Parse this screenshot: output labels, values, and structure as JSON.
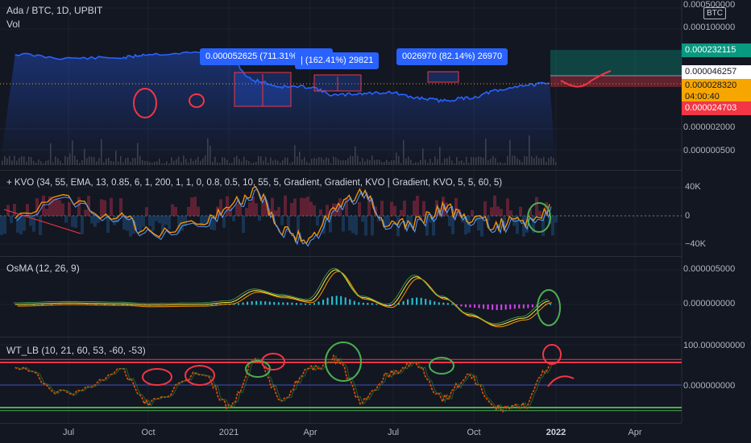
{
  "header": {
    "symbol": "Ada / BTC, 1D, UPBIT",
    "vol_label": "Vol"
  },
  "price_scale": {
    "currency_badge": "BTC",
    "labels": [
      "0.000500000",
      "0.000100000",
      "0.000002000",
      "0.000000500"
    ],
    "tags": {
      "target": "0.000232115",
      "last": "0.000046257",
      "current": "0.000028320",
      "countdown": "04:00:40",
      "stop": "0.000024703"
    }
  },
  "measure_tips": [
    "0.000052625 (711.31%) 52625",
    "| (162.41%) 29821",
    "0026970 (82.14%) 26970"
  ],
  "kvo": {
    "legend": "+ KVO (34, 55, EMA, 13, 0.85, 6, 1, 200, 1, 1, 0, 0.8, 0.5, 10, 55, 5, Gradient, Gradient, KVO | Gradient, KVO, 5, 5, 60, 5)",
    "axis": [
      "40K",
      "0",
      "−40K"
    ]
  },
  "osma": {
    "legend": "OsMA (12, 26, 9)",
    "axis": [
      "0.000005000",
      "0.000000000"
    ]
  },
  "wt": {
    "legend": "WT_LB (10, 21, 60, 53, -60, -53)",
    "axis": [
      "100.000000000",
      "0.000000000"
    ]
  },
  "time_axis": [
    "Jul",
    "Oct",
    "2021",
    "Apr",
    "Jul",
    "Oct",
    "2022",
    "Apr"
  ],
  "colors": {
    "background": "#131722",
    "price_line": "#2962ff",
    "target_tag": "#089981",
    "stop_tag": "#f23645",
    "current_tag": "#f7a600",
    "ob_line": "#f23645",
    "os_line": "#4caf50",
    "annotation_red": "#f23645",
    "annotation_green": "#4caf50"
  },
  "chart_data": [
    {
      "type": "line",
      "title": "Ada / BTC, 1D, UPBIT",
      "x": [
        "2020-05",
        "2020-07",
        "2020-09",
        "2020-10",
        "2020-12",
        "2021-01",
        "2021-02",
        "2021-03",
        "2021-04",
        "2021-05",
        "2021-06",
        "2021-07",
        "2021-08",
        "2021-09",
        "2021-10",
        "2021-11",
        "2021-12",
        "2022-01"
      ],
      "series": [
        {
          "values": [
            8.5e-06,
            1e-05,
            9.8e-06,
            8.5e-06,
            8e-06,
            8.2e-06,
            2.5e-05,
            3.2e-05,
            3.2e-05,
            4.5e-05,
            4.2e-05,
            4e-05,
            5e-05,
            5.6e-05,
            5e-05,
            3.8e-05,
            3e-05,
            2.83e-05
          ]
        }
      ]
    },
    {
      "type": "line",
      "title": "KVO",
      "ylim": [
        -40000,
        40000
      ],
      "x": [
        "2020-05",
        "2020-07",
        "2020-09",
        "2020-10",
        "2020-12",
        "2021-01",
        "2021-02",
        "2021-03",
        "2021-04",
        "2021-05",
        "2021-06",
        "2021-07",
        "2021-08",
        "2021-09",
        "2021-10",
        "2021-11",
        "2021-12",
        "2022-01"
      ],
      "series": [
        {
          "values": [
            5000,
            25000,
            -5000,
            -25000,
            -10000,
            15000,
            35000,
            -20000,
            -35000,
            10000,
            35000,
            -15000,
            -10000,
            12000,
            -5000,
            -12000,
            -8000,
            8000
          ]
        }
      ]
    },
    {
      "type": "line",
      "title": "OsMA (12, 26, 9)",
      "x": [
        "2020-05",
        "2020-07",
        "2020-09",
        "2020-10",
        "2020-12",
        "2021-01",
        "2021-02",
        "2021-03",
        "2021-04",
        "2021-05",
        "2021-06",
        "2021-07",
        "2021-08",
        "2021-09",
        "2021-10",
        "2021-11",
        "2021-12",
        "2022-01"
      ],
      "series": [
        {
          "values": [
            0.0,
            2e-07,
            1e-07,
            -1e-07,
            0.0,
            3e-07,
            2e-06,
            1.2e-06,
            5e-07,
            5e-06,
            1e-06,
            -2e-07,
            4e-06,
            1e-06,
            -1.5e-06,
            -3e-06,
            -2e-06,
            5e-07
          ]
        }
      ]
    },
    {
      "type": "line",
      "title": "WT_LB (10, 21, 60, 53, -60, -53)",
      "ylim": [
        -100,
        100
      ],
      "x": [
        "2020-05",
        "2020-07",
        "2020-09",
        "2020-10",
        "2020-12",
        "2021-01",
        "2021-02",
        "2021-03",
        "2021-04",
        "2021-05",
        "2021-06",
        "2021-07",
        "2021-08",
        "2021-09",
        "2021-10",
        "2021-11",
        "2021-12",
        "2022-01"
      ],
      "series": [
        {
          "values": [
            40,
            -20,
            30,
            -40,
            30,
            -50,
            55,
            -30,
            35,
            60,
            -40,
            25,
            50,
            -30,
            20,
            -55,
            -50,
            40
          ]
        }
      ]
    }
  ]
}
